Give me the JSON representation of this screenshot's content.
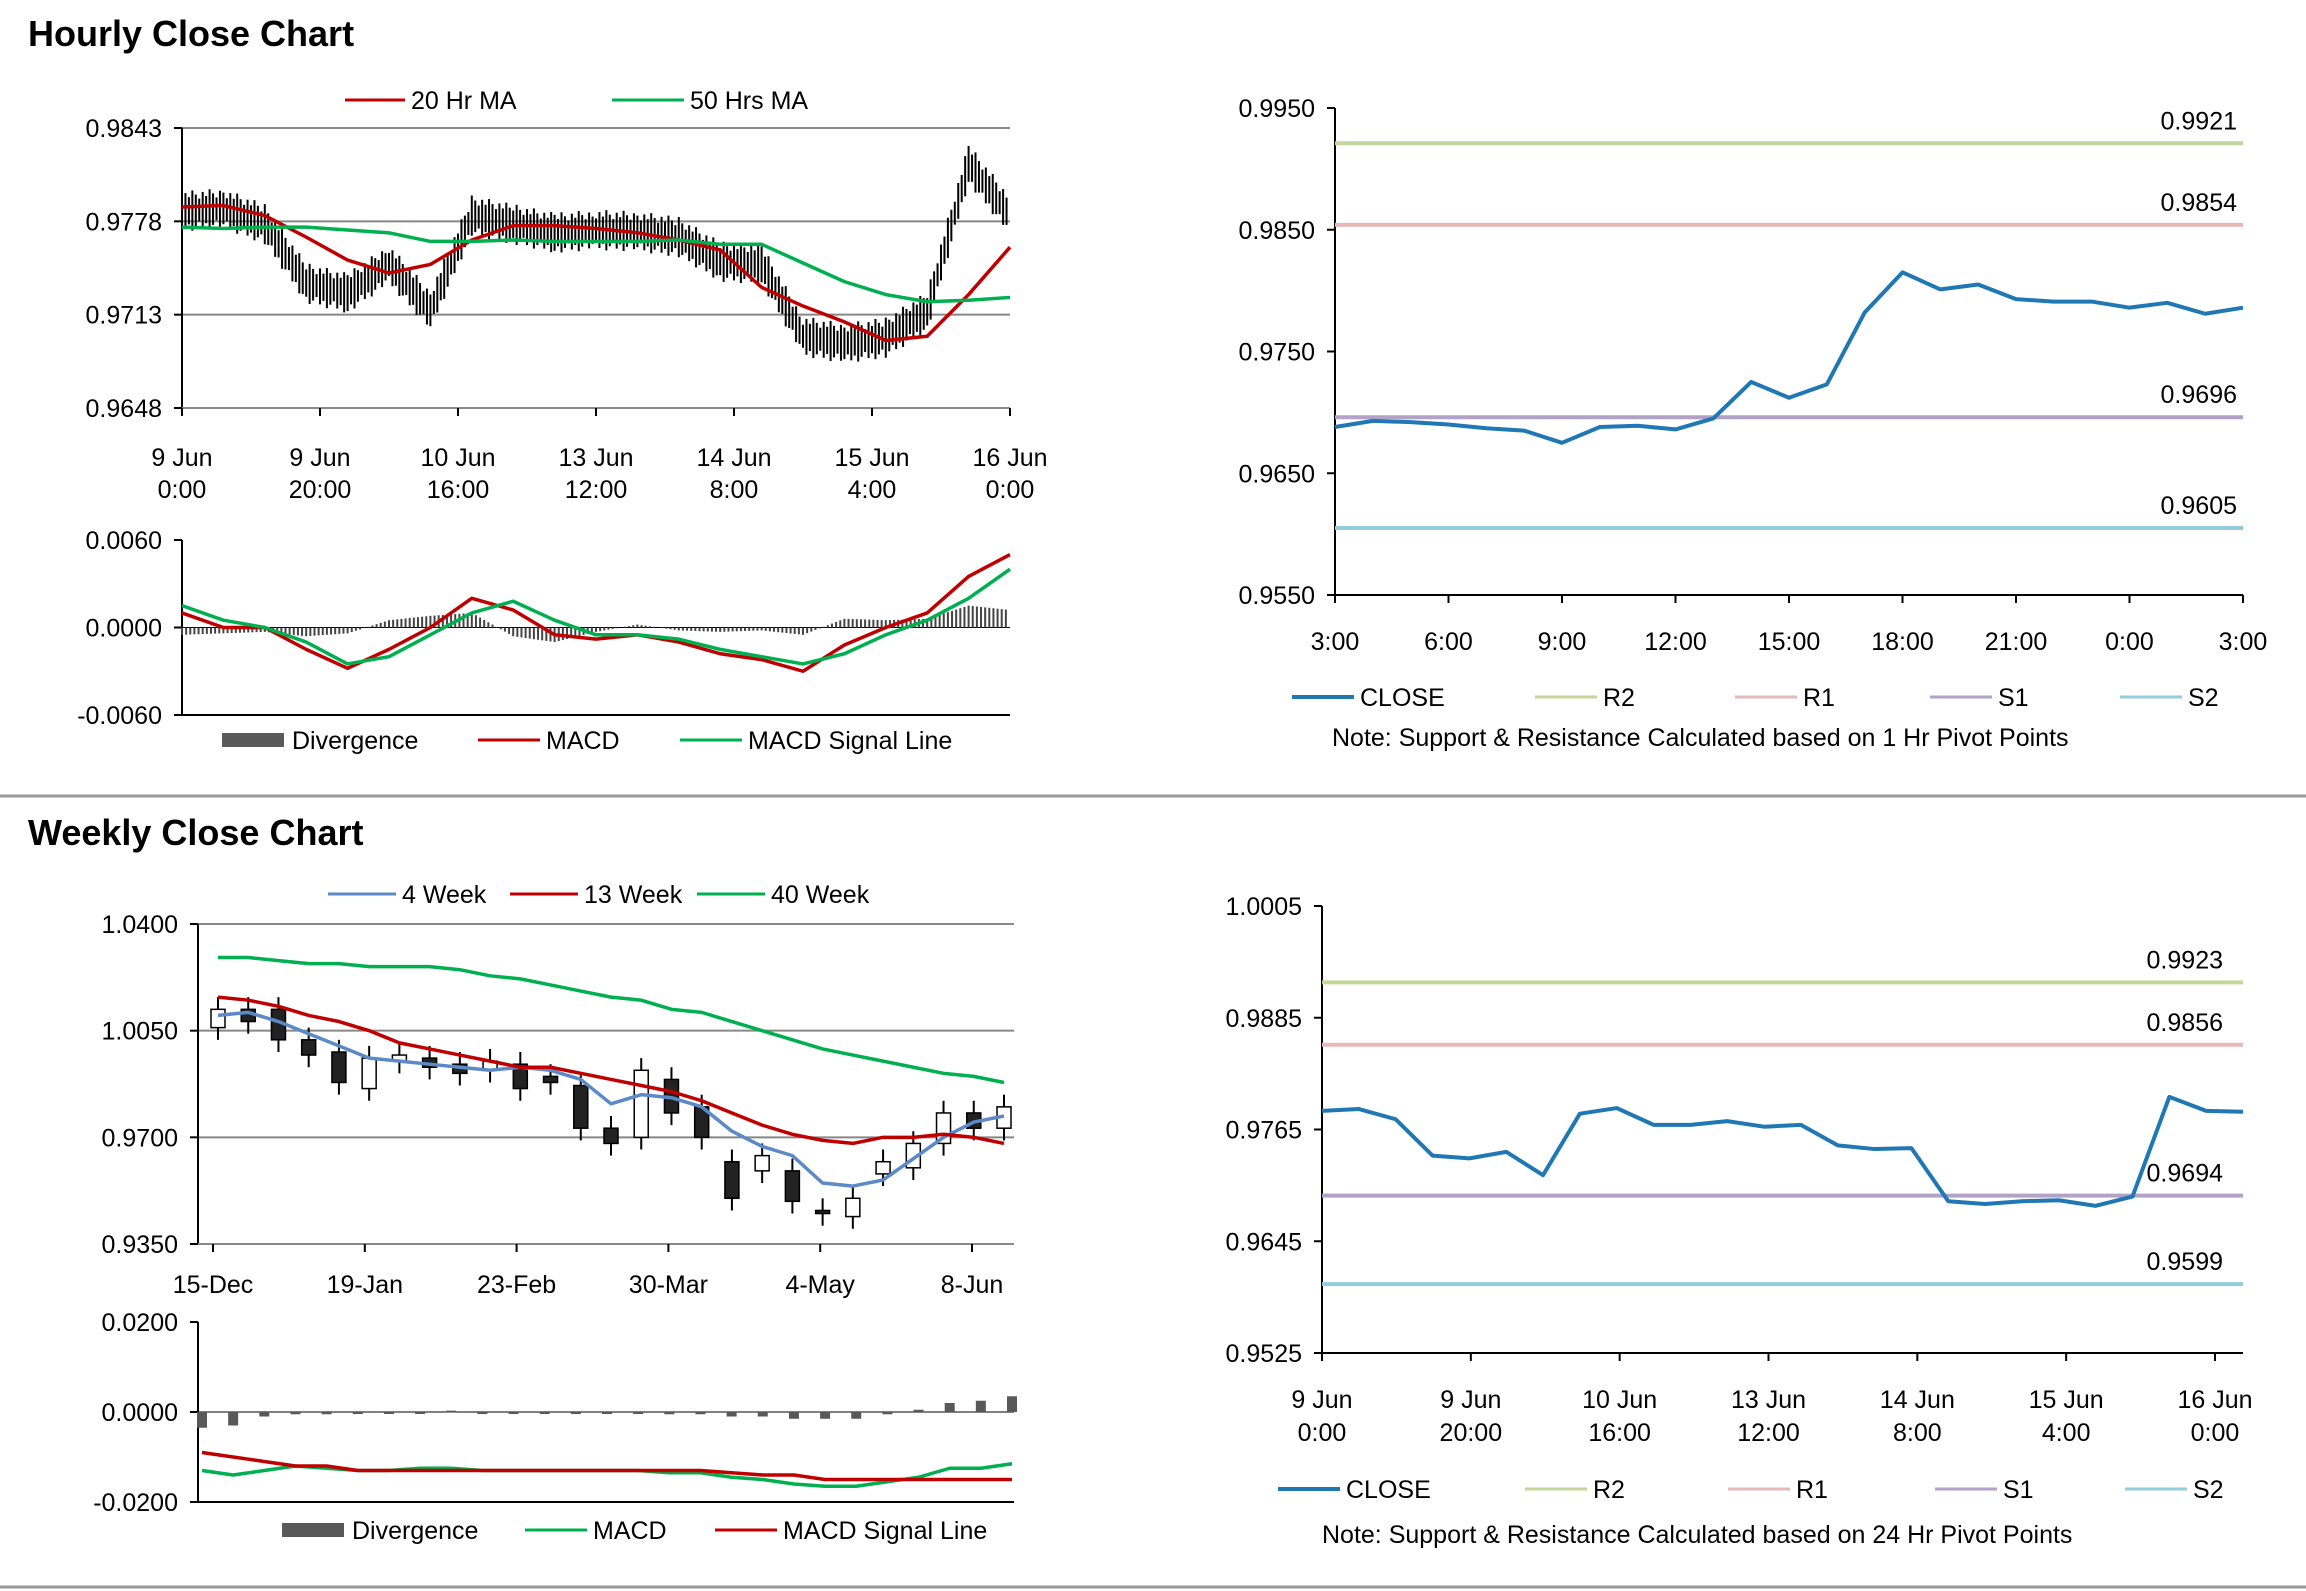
{
  "sections": {
    "hourly_title": "Hourly Close Chart",
    "weekly_title": "Weekly Close Chart"
  },
  "colors": {
    "red": "#c00000",
    "green": "#00b050",
    "blue": "#1f77b4",
    "bluelight": "#5b8ac6",
    "r2": "#c3d69b",
    "r1": "#e6b9b8",
    "s1": "#b3a2c7",
    "s2": "#93cddd",
    "grid": "#888888",
    "black": "#000000",
    "bar": "#595959"
  },
  "chart_data": [
    {
      "id": "hourly_price",
      "type": "line",
      "ylim": [
        0.9648,
        0.9843
      ],
      "yticks": [
        "0.9843",
        "0.9778",
        "0.9713",
        "0.9648"
      ],
      "x_tick_labels": [
        [
          "9 Jun",
          "0:00"
        ],
        [
          "9 Jun",
          "20:00"
        ],
        [
          "10 Jun",
          "16:00"
        ],
        [
          "13 Jun",
          "12:00"
        ],
        [
          "14 Jun",
          "8:00"
        ],
        [
          "15 Jun",
          "4:00"
        ],
        [
          "16 Jun",
          "0:00"
        ]
      ],
      "legend": [
        "20 Hr MA",
        "50 Hrs MA"
      ],
      "x": [
        0,
        5,
        10,
        15,
        20,
        25,
        30,
        35,
        40,
        45,
        50,
        55,
        60,
        65,
        70,
        75,
        80,
        85,
        90,
        95,
        100
      ],
      "price": [
        0.9785,
        0.9787,
        0.9776,
        0.9735,
        0.9728,
        0.9748,
        0.9716,
        0.9782,
        0.9776,
        0.977,
        0.9772,
        0.9771,
        0.9767,
        0.975,
        0.9748,
        0.9698,
        0.9693,
        0.9697,
        0.9715,
        0.9818,
        0.9782
      ],
      "series": [
        {
          "name": "20 Hr MA",
          "values": [
            0.9788,
            0.9789,
            0.9782,
            0.9767,
            0.9751,
            0.9742,
            0.9748,
            0.9765,
            0.9775,
            0.9775,
            0.9773,
            0.977,
            0.9765,
            0.9758,
            0.9732,
            0.9719,
            0.9708,
            0.9695,
            0.9698,
            0.9727,
            0.976
          ]
        },
        {
          "name": "50 Hrs MA",
          "values": [
            0.9774,
            0.9773,
            0.9774,
            0.9774,
            0.9772,
            0.977,
            0.9764,
            0.9764,
            0.9765,
            0.9764,
            0.9764,
            0.9764,
            0.9765,
            0.9762,
            0.9762,
            0.9749,
            0.9736,
            0.9727,
            0.9722,
            0.9723,
            0.9725
          ]
        }
      ]
    },
    {
      "id": "hourly_macd",
      "type": "line",
      "ylim": [
        -0.006,
        0.006
      ],
      "yticks": [
        "0.0060",
        "0.0000",
        "-0.0060"
      ],
      "legend": [
        "Divergence",
        "MACD",
        "MACD Signal Line"
      ],
      "x": [
        0,
        5,
        10,
        15,
        20,
        25,
        30,
        35,
        40,
        45,
        50,
        55,
        60,
        65,
        70,
        75,
        80,
        85,
        90,
        95,
        100
      ],
      "series": [
        {
          "name": "MACD",
          "values": [
            0.001,
            0.0,
            0.0,
            -0.0015,
            -0.0028,
            -0.0015,
            0.0,
            0.002,
            0.0012,
            -0.0005,
            -0.0008,
            -0.0005,
            -0.001,
            -0.0018,
            -0.0022,
            -0.003,
            -0.0012,
            0.0,
            0.001,
            0.0035,
            0.005
          ]
        },
        {
          "name": "MACD Signal Line",
          "values": [
            0.0015,
            0.0005,
            0.0,
            -0.001,
            -0.0025,
            -0.002,
            -0.0005,
            0.001,
            0.0018,
            0.0005,
            -0.0005,
            -0.0005,
            -0.0008,
            -0.0015,
            -0.002,
            -0.0025,
            -0.0018,
            -0.0005,
            0.0005,
            0.002,
            0.004
          ]
        },
        {
          "name": "Divergence",
          "values": [
            -0.0005,
            -0.0004,
            -0.0003,
            -0.0006,
            -0.0004,
            0.0005,
            0.0008,
            0.001,
            -0.0006,
            -0.001,
            -0.0003,
            0.0002,
            -0.0002,
            -0.0003,
            -0.0002,
            -0.0005,
            0.0006,
            0.0005,
            0.0006,
            0.0015,
            0.0012
          ]
        }
      ]
    },
    {
      "id": "hourly_sr",
      "type": "line",
      "ylim": [
        0.955,
        0.995
      ],
      "yticks": [
        "0.9950",
        "0.9850",
        "0.9750",
        "0.9650",
        "0.9550"
      ],
      "x_tick_labels": [
        "3:00",
        "6:00",
        "9:00",
        "12:00",
        "15:00",
        "18:00",
        "21:00",
        "0:00",
        "3:00"
      ],
      "legend": [
        "CLOSE",
        "R2",
        "R1",
        "S1",
        "S2"
      ],
      "note": "Note: Support & Resistance Calculated based on 1 Hr Pivot Points",
      "levels": [
        {
          "name": "R2",
          "value": 0.9921,
          "label": "0.9921"
        },
        {
          "name": "R1",
          "value": 0.9854,
          "label": "0.9854"
        },
        {
          "name": "S1",
          "value": 0.9696,
          "label": "0.9696"
        },
        {
          "name": "S2",
          "value": 0.9605,
          "label": "0.9605"
        }
      ],
      "x": [
        0,
        1,
        2,
        3,
        4,
        5,
        6,
        7,
        8,
        9,
        10,
        11,
        12,
        13,
        14,
        15,
        16,
        17,
        18,
        19,
        20,
        21,
        22,
        23,
        24
      ],
      "series": [
        {
          "name": "CLOSE",
          "values": [
            0.9688,
            0.9693,
            0.9692,
            0.969,
            0.9687,
            0.9685,
            0.9675,
            0.9688,
            0.9689,
            0.9686,
            0.9695,
            0.9725,
            0.9712,
            0.9723,
            0.9782,
            0.9815,
            0.9801,
            0.9805,
            0.9793,
            0.9791,
            0.9791,
            0.9786,
            0.979,
            0.9781,
            0.9786
          ]
        }
      ]
    },
    {
      "id": "weekly_price",
      "type": "line",
      "ylim": [
        0.935,
        1.04
      ],
      "yticks": [
        "1.0400",
        "1.0050",
        "0.9700",
        "0.9350"
      ],
      "x_tick_labels": [
        "15-Dec",
        "19-Jan",
        "23-Feb",
        "30-Mar",
        "4-May",
        "8-Jun"
      ],
      "legend": [
        "4 Week",
        "13 Week",
        "40 Week"
      ],
      "x": [
        0,
        1,
        2,
        3,
        4,
        5,
        6,
        7,
        8,
        9,
        10,
        11,
        12,
        13,
        14,
        15,
        16,
        17,
        18,
        19,
        20,
        21,
        22,
        23,
        24,
        25,
        26
      ],
      "candles": [
        [
          1.006,
          1.012
        ],
        [
          1.012,
          1.008
        ],
        [
          1.012,
          1.002
        ],
        [
          1.002,
          0.997
        ],
        [
          0.998,
          0.988
        ],
        [
          0.986,
          0.996
        ],
        [
          0.995,
          0.997
        ],
        [
          0.996,
          0.993
        ],
        [
          0.994,
          0.991
        ],
        [
          0.992,
          0.995
        ],
        [
          0.994,
          0.986
        ],
        [
          0.99,
          0.988
        ],
        [
          0.987,
          0.973
        ],
        [
          0.973,
          0.968
        ],
        [
          0.97,
          0.992
        ],
        [
          0.989,
          0.978
        ],
        [
          0.98,
          0.97
        ],
        [
          0.962,
          0.95
        ],
        [
          0.959,
          0.964
        ],
        [
          0.959,
          0.949
        ],
        [
          0.946,
          0.945
        ],
        [
          0.944,
          0.95
        ],
        [
          0.958,
          0.962
        ],
        [
          0.96,
          0.968
        ],
        [
          0.968,
          0.978
        ],
        [
          0.978,
          0.973
        ],
        [
          0.973,
          0.98
        ]
      ],
      "series": [
        {
          "name": "4 Week",
          "values": [
            1.01,
            1.011,
            1.008,
            1.004,
            1.0,
            0.996,
            0.995,
            0.994,
            0.993,
            0.992,
            0.993,
            0.992,
            0.989,
            0.981,
            0.984,
            0.983,
            0.98,
            0.972,
            0.967,
            0.964,
            0.955,
            0.954,
            0.956,
            0.963,
            0.97,
            0.975,
            0.977
          ]
        },
        {
          "name": "13 Week",
          "values": [
            1.016,
            1.015,
            1.013,
            1.01,
            1.008,
            1.005,
            1.001,
            0.999,
            0.997,
            0.995,
            0.993,
            0.993,
            0.991,
            0.989,
            0.987,
            0.985,
            0.982,
            0.978,
            0.974,
            0.971,
            0.969,
            0.968,
            0.97,
            0.97,
            0.971,
            0.97,
            0.968
          ]
        },
        {
          "name": "40 Week",
          "values": [
            1.029,
            1.029,
            1.028,
            1.027,
            1.027,
            1.026,
            1.026,
            1.026,
            1.025,
            1.023,
            1.022,
            1.02,
            1.018,
            1.016,
            1.015,
            1.012,
            1.011,
            1.008,
            1.005,
            1.002,
            0.999,
            0.997,
            0.995,
            0.993,
            0.991,
            0.99,
            0.988
          ]
        }
      ]
    },
    {
      "id": "weekly_macd",
      "type": "line",
      "ylim": [
        -0.02,
        0.02
      ],
      "yticks": [
        "0.0200",
        "0.0000",
        "-0.0200"
      ],
      "legend": [
        "Divergence",
        "MACD",
        "MACD Signal Line"
      ],
      "x": [
        0,
        1,
        2,
        3,
        4,
        5,
        6,
        7,
        8,
        9,
        10,
        11,
        12,
        13,
        14,
        15,
        16,
        17,
        18,
        19,
        20,
        21,
        22,
        23,
        24,
        25,
        26
      ],
      "series": [
        {
          "name": "MACD",
          "values": [
            -0.013,
            -0.014,
            -0.013,
            -0.012,
            -0.0125,
            -0.013,
            -0.013,
            -0.0125,
            -0.0125,
            -0.013,
            -0.013,
            -0.013,
            -0.013,
            -0.013,
            -0.013,
            -0.0135,
            -0.0135,
            -0.0145,
            -0.015,
            -0.016,
            -0.0165,
            -0.0165,
            -0.0155,
            -0.0145,
            -0.0125,
            -0.0125,
            -0.0115
          ]
        },
        {
          "name": "MACD Signal Line",
          "values": [
            -0.009,
            -0.01,
            -0.011,
            -0.012,
            -0.012,
            -0.013,
            -0.013,
            -0.013,
            -0.013,
            -0.013,
            -0.013,
            -0.013,
            -0.013,
            -0.013,
            -0.013,
            -0.013,
            -0.013,
            -0.0135,
            -0.014,
            -0.014,
            -0.015,
            -0.015,
            -0.015,
            -0.015,
            -0.015,
            -0.015,
            -0.015
          ]
        },
        {
          "name": "Divergence",
          "values": [
            -0.0035,
            -0.003,
            -0.001,
            -0.0005,
            -0.0005,
            0.0,
            -0.0003,
            0.0,
            0.0003,
            -0.0003,
            -0.0003,
            -0.0003,
            -0.0003,
            -0.0003,
            -0.0003,
            -0.0005,
            -0.0005,
            -0.001,
            -0.001,
            -0.0015,
            -0.0015,
            -0.0015,
            -0.0005,
            0.0005,
            0.002,
            0.0025,
            0.0035
          ]
        }
      ]
    },
    {
      "id": "weekly_sr",
      "type": "line",
      "ylim": [
        0.9525,
        1.0005
      ],
      "yticks": [
        "1.0005",
        "0.9885",
        "0.9765",
        "0.9645",
        "0.9525"
      ],
      "x_tick_labels": [
        [
          "9 Jun",
          "0:00"
        ],
        [
          "9 Jun",
          "20:00"
        ],
        [
          "10 Jun",
          "16:00"
        ],
        [
          "13 Jun",
          "12:00"
        ],
        [
          "14 Jun",
          "8:00"
        ],
        [
          "15 Jun",
          "4:00"
        ],
        [
          "16 Jun",
          "0:00"
        ]
      ],
      "legend": [
        "CLOSE",
        "R2",
        "R1",
        "S1",
        "S2"
      ],
      "note": "Note: Support & Resistance Calculated based on 24 Hr Pivot Points",
      "levels": [
        {
          "name": "R2",
          "value": 0.9923,
          "label": "0.9923"
        },
        {
          "name": "R1",
          "value": 0.9856,
          "label": "0.9856"
        },
        {
          "name": "S1",
          "value": 0.9694,
          "label": "0.9694"
        },
        {
          "name": "S2",
          "value": 0.9599,
          "label": "0.9599"
        }
      ],
      "x": [
        0,
        4,
        8,
        12,
        16,
        20,
        24,
        28,
        32,
        36,
        40,
        44,
        48,
        52,
        56,
        60,
        64,
        68,
        72,
        76,
        80,
        84,
        88,
        92,
        96,
        100
      ],
      "series": [
        {
          "name": "CLOSE",
          "values": [
            0.9785,
            0.9787,
            0.9776,
            0.9737,
            0.9734,
            0.9741,
            0.9716,
            0.9782,
            0.9788,
            0.977,
            0.977,
            0.9774,
            0.9768,
            0.977,
            0.9748,
            0.9744,
            0.9745,
            0.9688,
            0.9685,
            0.9688,
            0.9689,
            0.9683,
            0.9693,
            0.98,
            0.9785,
            0.9784
          ]
        }
      ]
    }
  ]
}
